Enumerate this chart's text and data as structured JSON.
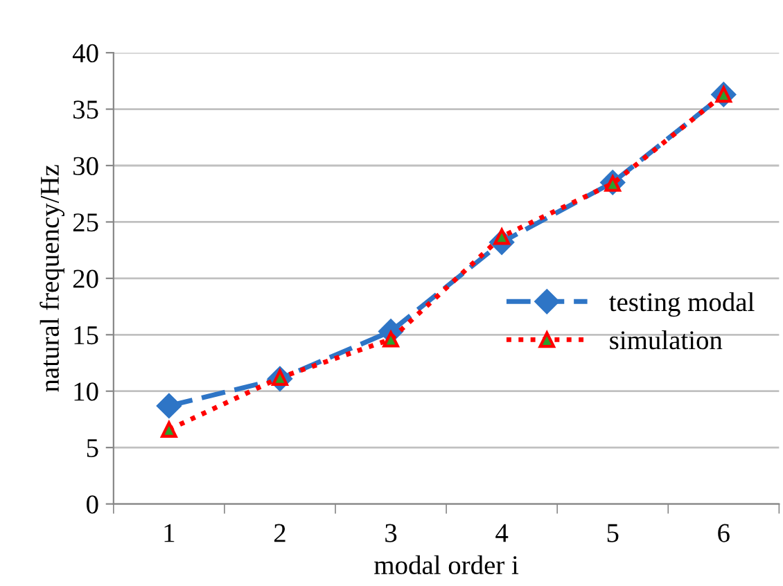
{
  "chart_data": {
    "type": "line",
    "xlabel": "modal order i",
    "ylabel": "natural frequency/Hz",
    "categories": [
      "1",
      "2",
      "3",
      "4",
      "5",
      "6"
    ],
    "series": [
      {
        "name": "testing modal",
        "color": "#2e75c6",
        "marker": "diamond",
        "line_style": "dashed",
        "values": [
          8.7,
          11.1,
          15.3,
          23.2,
          28.5,
          36.3
        ]
      },
      {
        "name": "simulation",
        "color": "#ff0000",
        "marker": "triangle",
        "line_style": "dotted",
        "values": [
          6.6,
          11.2,
          14.6,
          23.7,
          28.4,
          36.3
        ]
      }
    ],
    "ylim": [
      0,
      40
    ],
    "yticks": [
      0,
      5,
      10,
      15,
      20,
      25,
      30,
      35,
      40
    ],
    "grid": "y",
    "legend": "right"
  }
}
